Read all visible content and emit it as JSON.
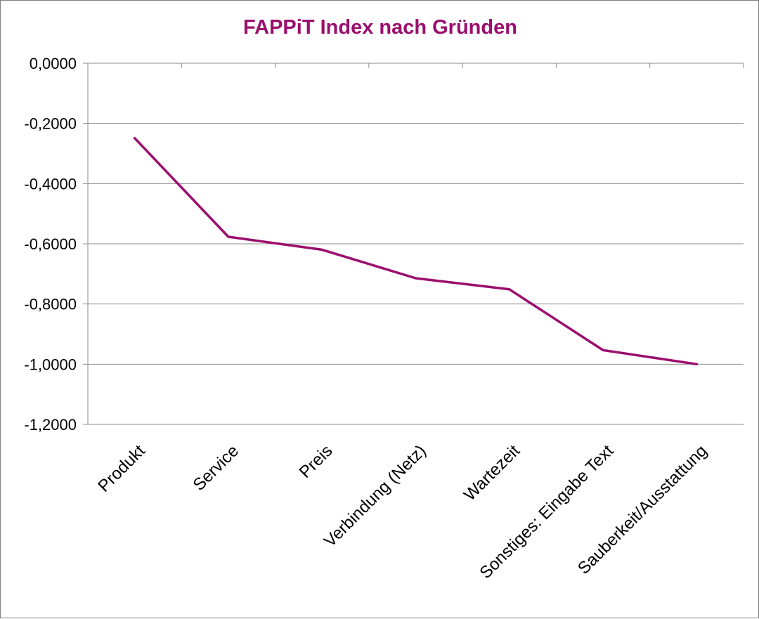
{
  "chart_data": {
    "type": "line",
    "title": "FAPPiT Index nach Gründen",
    "xlabel": "",
    "ylabel": "",
    "categories": [
      "Produkt",
      "Service",
      "Preis",
      "Verbindung (Netz)",
      "Wartezeit",
      "Sonstiges: Eingabe Text",
      "Sauberkeit/Ausstattung"
    ],
    "series": [
      {
        "values": [
          -0.2488,
          -0.5767,
          -0.6196,
          -0.7143,
          -0.7512,
          -0.9535,
          -1.0
        ]
      }
    ],
    "ylim": [
      -1.2,
      0
    ],
    "yticks": [
      0,
      -0.2,
      -0.4,
      -0.6,
      -0.8,
      -1.0,
      -1.2
    ],
    "ytick_labels": [
      "0,0000",
      "-0,2000",
      "-0,4000",
      "-0,6000",
      "-0,8000",
      "-1,0000",
      "-1,2000"
    ],
    "grid": true,
    "legend": "none",
    "colors": {
      "line": "#9b0e6e",
      "title": "#9b0e6e",
      "grid": "#8c8c8c",
      "axis": "#8c8c8c"
    }
  }
}
